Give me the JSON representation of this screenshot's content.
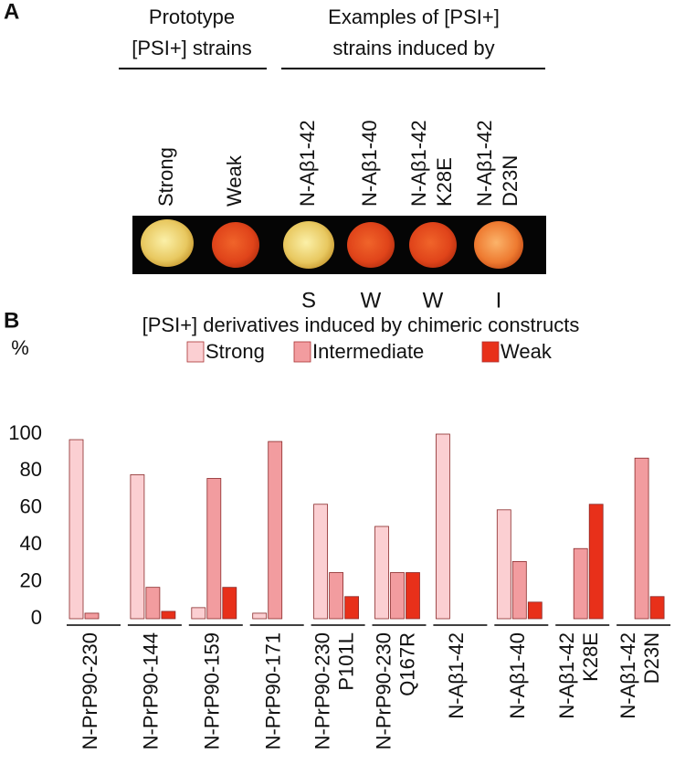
{
  "panel_a": {
    "label": "A",
    "groups": [
      {
        "lines": [
          "Prototype",
          "[PSI+] strains"
        ]
      },
      {
        "lines": [
          "Examples of [PSI+]",
          "strains induced by"
        ]
      }
    ],
    "strains": [
      [
        "Strong"
      ],
      [
        "Weak"
      ],
      [
        "N-Aβ1-42"
      ],
      [
        "N-Aβ1-40"
      ],
      [
        "N-Aβ1-42",
        "K28E"
      ],
      [
        "N-Aβ1-42",
        "D23N"
      ]
    ],
    "phenotypes": [
      "S",
      "W",
      "W",
      "I"
    ]
  },
  "chart_data": {
    "type": "bar",
    "panel_label": "B",
    "title": "[PSI+] derivatives induced by chimeric constructs",
    "y_label": "%",
    "categories": [
      [
        "N-PrP90-230"
      ],
      [
        "N-PrP90-144"
      ],
      [
        "N-PrP90-159"
      ],
      [
        "N-PrP90-171"
      ],
      [
        "N-PrP90-230",
        "P101L"
      ],
      [
        "N-PrP90-230",
        "Q167R"
      ],
      [
        "N-Aβ1-42"
      ],
      [
        "N-Aβ1-40"
      ],
      [
        "N-Aβ1-42",
        "K28E"
      ],
      [
        "N-Aβ1-42",
        "D23N"
      ]
    ],
    "series": [
      {
        "name": "Strong",
        "color": "#fbcfd2",
        "values": [
          97,
          78,
          6,
          3,
          62,
          50,
          100,
          59,
          0,
          0
        ]
      },
      {
        "name": "Intermediate",
        "color": "#f29c9f",
        "values": [
          3,
          17,
          76,
          96,
          25,
          25,
          0,
          31,
          38,
          87
        ]
      },
      {
        "name": "Weak",
        "color": "#e8301a",
        "values": [
          0,
          4,
          17,
          0,
          12,
          25,
          0,
          9,
          62,
          12
        ]
      }
    ],
    "ylim": [
      0,
      100
    ],
    "yticks": [
      0,
      20,
      40,
      60,
      80,
      100
    ]
  }
}
